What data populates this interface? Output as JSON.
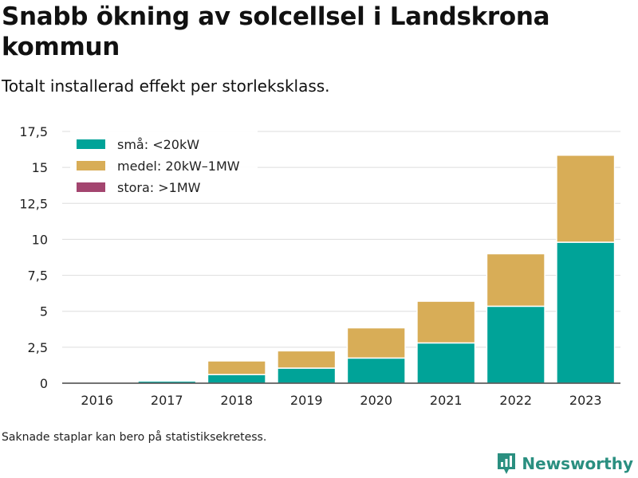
{
  "title": "Snabb ökning av solcellsel i Landskrona kommun",
  "subtitle": "Totalt installerad effekt per storleksklass.",
  "footnote": "Saknade staplar kan bero på statistiksekretess.",
  "brand": {
    "name": "Newsworthy",
    "icon": "newsworthy-logo-icon",
    "color": "#2a8f80"
  },
  "chart_data": {
    "type": "bar",
    "stacked": true,
    "categories": [
      "2016",
      "2017",
      "2018",
      "2019",
      "2020",
      "2021",
      "2022",
      "2023"
    ],
    "series": [
      {
        "name": "små: <20kW",
        "color": "#00a398",
        "values": [
          0.03,
          0.15,
          0.6,
          1.05,
          1.75,
          2.8,
          5.35,
          9.8
        ]
      },
      {
        "name": "medel: 20kW–1MW",
        "color": "#d8ad57",
        "values": [
          0,
          0.02,
          0.95,
          1.2,
          2.1,
          2.9,
          3.65,
          6.05
        ]
      },
      {
        "name": "stora: >1MW",
        "color": "#a3456f",
        "values": [
          0,
          0,
          0,
          0,
          0,
          0,
          0,
          0
        ]
      }
    ],
    "ylim": [
      0,
      17.5
    ],
    "yticks": [
      0,
      2.5,
      5,
      7.5,
      10,
      12.5,
      15,
      17.5
    ],
    "ytick_labels": [
      "0",
      "2,5",
      "5",
      "7,5",
      "10",
      "12,5",
      "15",
      "17,5"
    ],
    "grid": true,
    "legend": "top-left",
    "xlabel": "",
    "ylabel": ""
  }
}
